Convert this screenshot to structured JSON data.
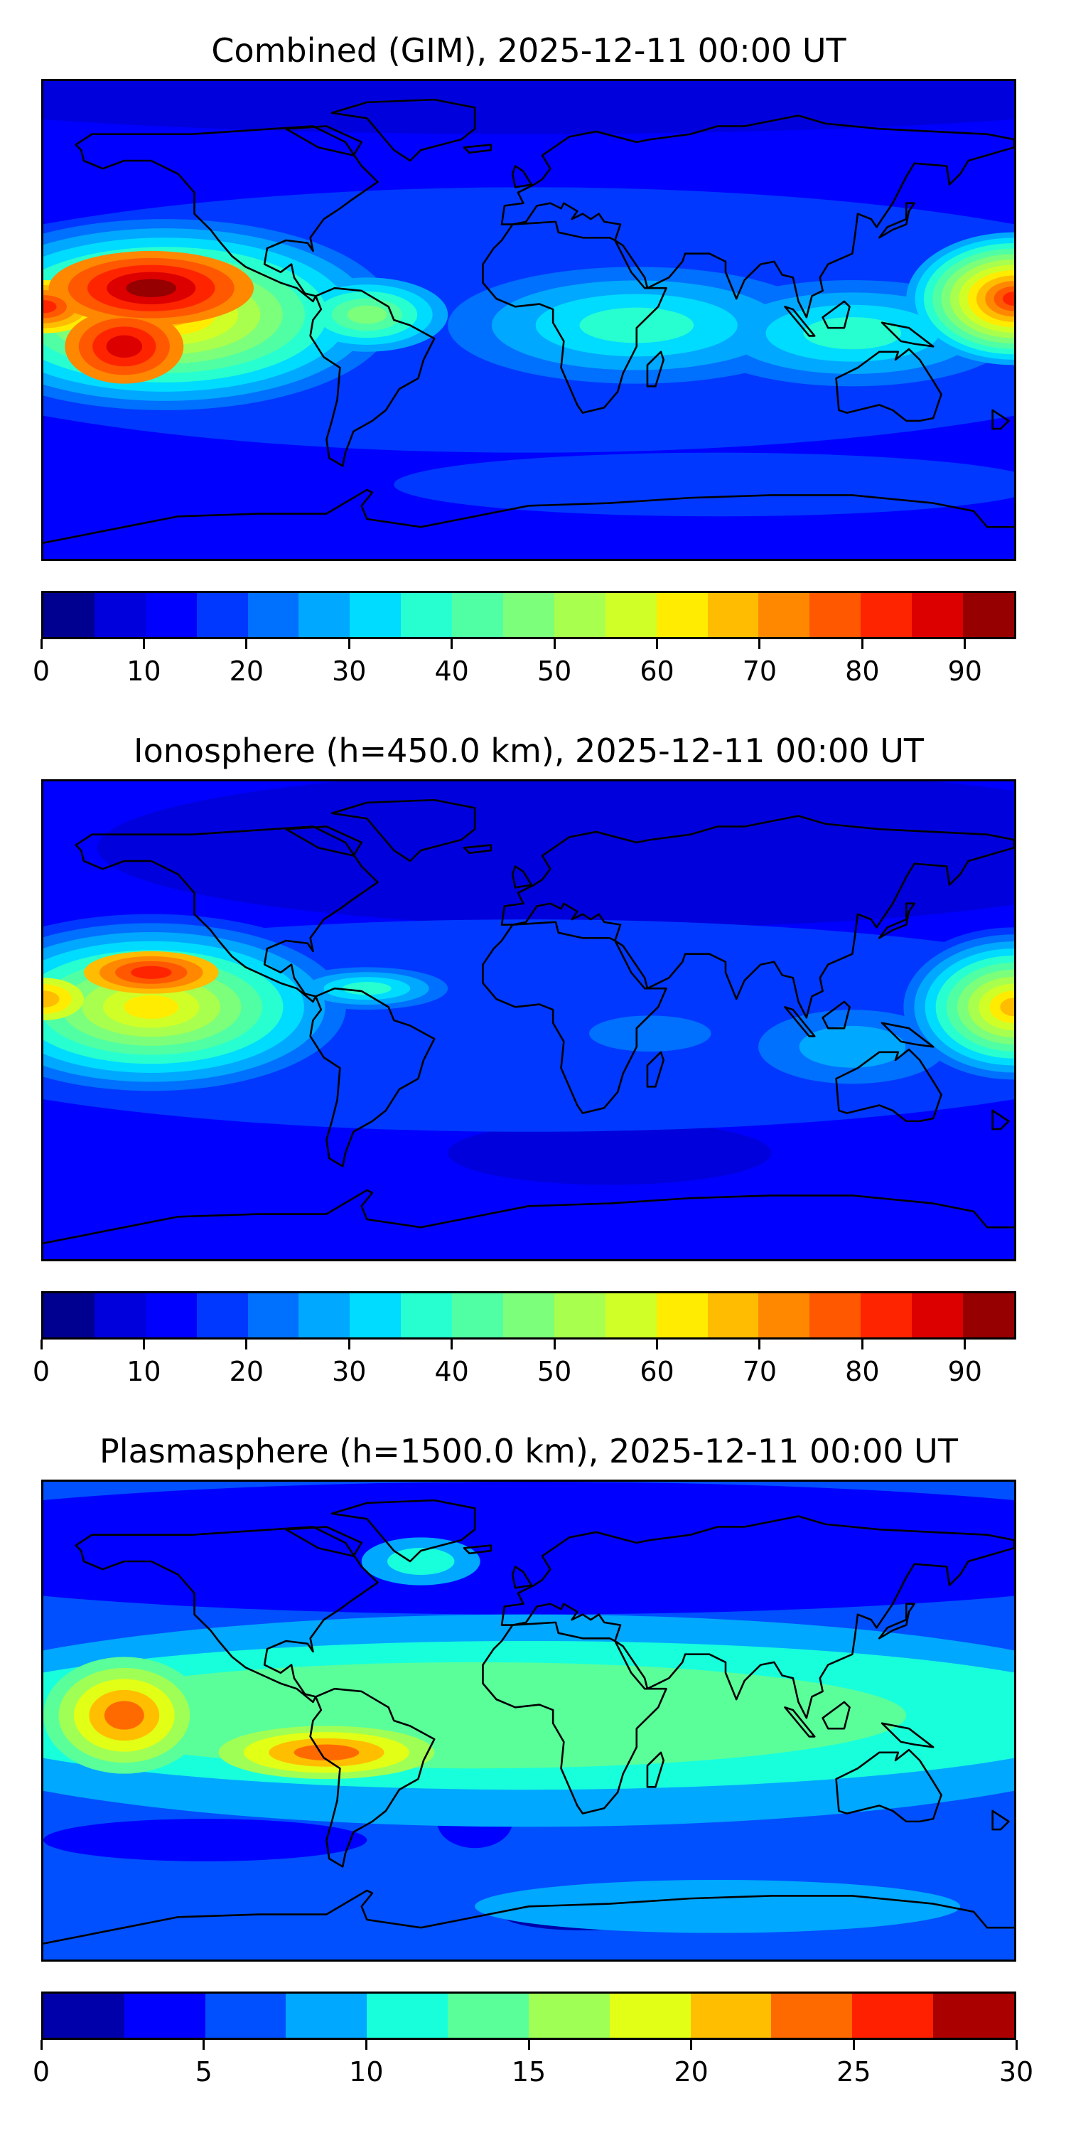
{
  "panels": [
    {
      "title": "Combined (GIM), 2025-12-11 00:00 UT",
      "colorbar": {
        "min": 0,
        "max": 95,
        "step": 5,
        "ticks": [
          "0",
          "10",
          "20",
          "30",
          "40",
          "50",
          "60",
          "70",
          "80",
          "90"
        ],
        "tick_values": [
          0,
          10,
          20,
          30,
          40,
          50,
          60,
          70,
          80,
          90
        ],
        "colors": [
          "#000090",
          "#0000dc",
          "#0000ff",
          "#0038ff",
          "#0070ff",
          "#00a8ff",
          "#00dcff",
          "#28ffd0",
          "#50ffa4",
          "#7cff7a",
          "#a8ff4e",
          "#d0ff28",
          "#ffec00",
          "#ffbc00",
          "#ff8800",
          "#ff5800",
          "#ff2400",
          "#dc0000",
          "#960000"
        ]
      }
    },
    {
      "title": "Ionosphere  (h=450.0 km), 2025-12-11 00:00 UT",
      "colorbar": {
        "min": 0,
        "max": 95,
        "step": 5,
        "ticks": [
          "0",
          "10",
          "20",
          "30",
          "40",
          "50",
          "60",
          "70",
          "80",
          "90"
        ],
        "tick_values": [
          0,
          10,
          20,
          30,
          40,
          50,
          60,
          70,
          80,
          90
        ],
        "colors": [
          "#000090",
          "#0000dc",
          "#0000ff",
          "#0038ff",
          "#0070ff",
          "#00a8ff",
          "#00dcff",
          "#28ffd0",
          "#50ffa4",
          "#7cff7a",
          "#a8ff4e",
          "#d0ff28",
          "#ffec00",
          "#ffbc00",
          "#ff8800",
          "#ff5800",
          "#ff2400",
          "#dc0000",
          "#960000"
        ]
      }
    },
    {
      "title": "Plasmasphere (h=1500.0 km), 2025-12-11 00:00 UT",
      "colorbar": {
        "min": 0,
        "max": 30,
        "step": 2.5,
        "ticks": [
          "0",
          "5",
          "10",
          "15",
          "20",
          "25",
          "30"
        ],
        "tick_values": [
          0,
          5,
          10,
          15,
          20,
          25,
          30
        ],
        "colors": [
          "#0000aa",
          "#0000ff",
          "#0050ff",
          "#00a8ff",
          "#18ffdc",
          "#5aff9a",
          "#a0ff55",
          "#e2ff16",
          "#ffbf00",
          "#ff6a00",
          "#ff2000",
          "#aa0000"
        ]
      }
    }
  ]
}
